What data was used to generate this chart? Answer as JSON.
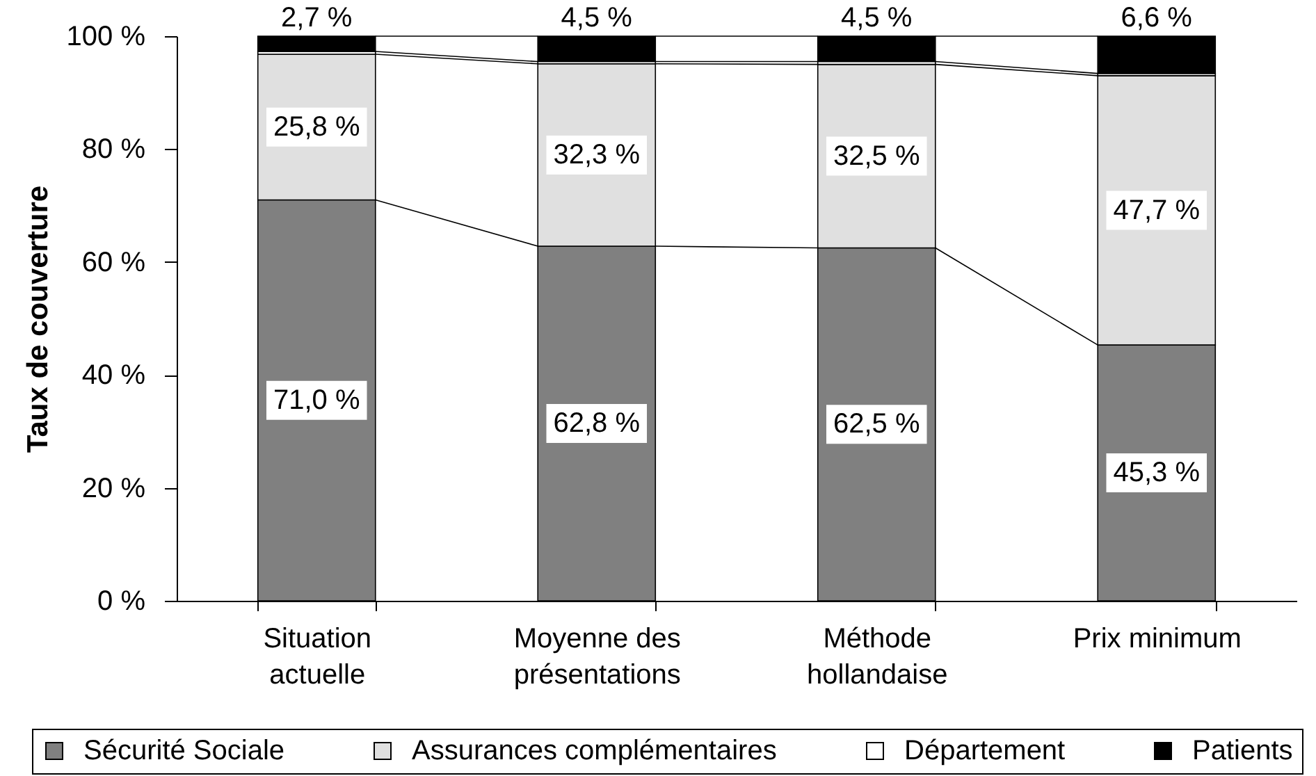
{
  "chart_data": {
    "type": "bar",
    "stacked": true,
    "ylabel": "Taux de couverture",
    "categories": [
      "Situation actuelle",
      "Moyenne des présentations",
      "Méthode hollandaise",
      "Prix minimum"
    ],
    "series": [
      {
        "name": "Sécurité Sociale",
        "color": "#808080",
        "values": [
          71.0,
          62.8,
          62.5,
          45.3
        ],
        "value_labels": [
          "71,0 %",
          "62,8 %",
          "62,5 %",
          "45,3 %"
        ]
      },
      {
        "name": "Assurances complémentaires",
        "color": "#e0e0e0",
        "values": [
          25.8,
          32.3,
          32.5,
          47.7
        ],
        "value_labels": [
          "25,8 %",
          "32,3 %",
          "32,5 %",
          "47,7 %"
        ]
      },
      {
        "name": "Département",
        "color": "#ffffff",
        "values": [
          0.5,
          0.4,
          0.5,
          0.4
        ]
      },
      {
        "name": "Patients",
        "color": "#000000",
        "values": [
          2.7,
          4.5,
          4.5,
          6.6
        ],
        "value_labels": [
          "2,7 %",
          "4,5 %",
          "4,5 %",
          "6,6 %"
        ]
      }
    ],
    "ylim": [
      0,
      100
    ],
    "yticks": [
      {
        "value": 0,
        "label": "0 %"
      },
      {
        "value": 20,
        "label": "20 %"
      },
      {
        "value": 40,
        "label": "40 %"
      },
      {
        "value": 60,
        "label": "60 %"
      },
      {
        "value": 80,
        "label": "80 %"
      },
      {
        "value": 100,
        "label": "100 %"
      }
    ],
    "grid": false,
    "legend": "bottom"
  }
}
